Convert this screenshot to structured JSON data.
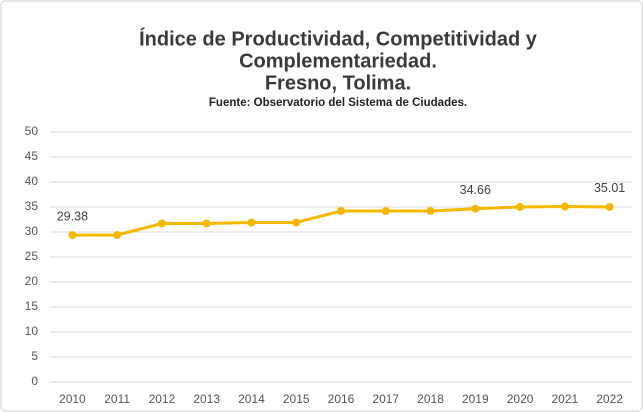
{
  "chart_data": {
    "type": "line",
    "title": [
      "Índice de Productividad, Competitividad y",
      "Complementariedad.",
      "Fresno, Tolima."
    ],
    "subtitle": "Fuente: Observatorio del Sistema de Ciudades.",
    "categories": [
      "2010",
      "2011",
      "2012",
      "2013",
      "2014",
      "2015",
      "2016",
      "2017",
      "2018",
      "2019",
      "2020",
      "2021",
      "2022"
    ],
    "values": [
      29.38,
      29.4,
      31.7,
      31.7,
      31.9,
      31.9,
      34.2,
      34.2,
      34.2,
      34.66,
      35.0,
      35.1,
      35.01
    ],
    "value_labels": [
      "29.38",
      null,
      null,
      null,
      null,
      null,
      null,
      null,
      null,
      "34.66",
      null,
      null,
      "35.01"
    ],
    "color": "#f5b800",
    "ylim": [
      0,
      50
    ],
    "yticks": [
      0,
      5,
      10,
      15,
      20,
      25,
      30,
      35,
      40,
      45,
      50
    ],
    "grid": true
  }
}
